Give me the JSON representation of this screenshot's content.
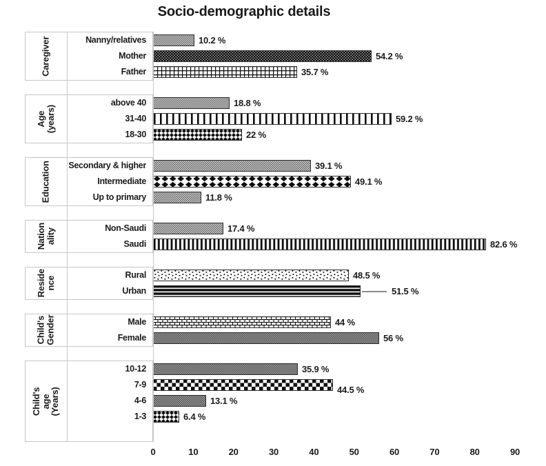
{
  "title": "Socio-demographic details",
  "palette": {
    "ink": "#1a1a1a",
    "bar_border": "#2a2a2a",
    "grid_line": "#c6c6c6",
    "pattern_black": "#0d0d0d",
    "pattern_gray": "#9d9d9d"
  },
  "chart_data": {
    "type": "bar",
    "orientation": "horizontal",
    "title": "Socio-demographic details",
    "xlabel": "",
    "ylabel": "",
    "unit": "%",
    "xlim": [
      0,
      90
    ],
    "x_ticks": [
      0,
      10,
      20,
      30,
      40,
      50,
      60,
      70,
      80,
      90
    ],
    "grid": false,
    "legend": false,
    "groups": [
      {
        "label_lines": [
          "Caregiver"
        ],
        "items": [
          {
            "category": "Nanny/relatives",
            "value": 10.2,
            "value_label": "10.2 %",
            "pattern": "gray-dither"
          },
          {
            "category": "Mother",
            "value": 54.2,
            "value_label": "54.2 %",
            "pattern": "dark-dots"
          },
          {
            "category": "Father",
            "value": 35.7,
            "value_label": "35.7 %",
            "pattern": "grid"
          }
        ]
      },
      {
        "label_lines": [
          "Age (years)"
        ],
        "items": [
          {
            "category": "above 40",
            "value": 18.8,
            "value_label": "18.8 %",
            "pattern": "gray-dither"
          },
          {
            "category": "31-40",
            "value": 59.2,
            "value_label": "59.2 %",
            "pattern": "vlines-wide"
          },
          {
            "category": "18-30",
            "value": 22,
            "value_label": "22 %",
            "pattern": "diamond-small"
          }
        ]
      },
      {
        "label_lines": [
          "Education"
        ],
        "items": [
          {
            "category": "Secondary & higher",
            "value": 39.1,
            "value_label": "39.1 %",
            "pattern": "gray-dither"
          },
          {
            "category": "Intermediate",
            "value": 49.1,
            "value_label": "49.1 %",
            "pattern": "diamond-big"
          },
          {
            "category": "Up to primary",
            "value": 11.8,
            "value_label": "11.8 %",
            "pattern": "gray-dither"
          }
        ]
      },
      {
        "label_lines": [
          "Nation",
          "ality"
        ],
        "items": [
          {
            "category": "Non-Saudi",
            "value": 17.4,
            "value_label": "17.4 %",
            "pattern": "gray-dither"
          },
          {
            "category": "Saudi",
            "value": 82.6,
            "value_label": "82.6 %",
            "pattern": "vlines-dense"
          }
        ]
      },
      {
        "label_lines": [
          "Reside",
          "nce"
        ],
        "items": [
          {
            "category": "Rural",
            "value": 48.5,
            "value_label": "48.5 %",
            "pattern": "speckle"
          },
          {
            "category": "Urban",
            "value": 51.5,
            "value_label": "51.5 %",
            "pattern": "hstripes-dark",
            "leader_line": true
          }
        ]
      },
      {
        "label_lines": [
          "Child's",
          "Gender"
        ],
        "items": [
          {
            "category": "Male",
            "value": 44,
            "value_label": "44 %",
            "pattern": "brick"
          },
          {
            "category": "Female",
            "value": 56,
            "value_label": "56 %",
            "pattern": "gray-dither-dark"
          }
        ]
      },
      {
        "label_lines": [
          "Child's age (Years)"
        ],
        "items": [
          {
            "category": "10-12",
            "value": 35.9,
            "value_label": "35.9 %",
            "pattern": "gray-dither-dark"
          },
          {
            "category": "7-9",
            "value": 44.5,
            "value_label": "44.5 %",
            "pattern": "checker",
            "label_low": true
          },
          {
            "category": "4-6",
            "value": 13.1,
            "value_label": "13.1 %",
            "pattern": "gray-dither-dark"
          },
          {
            "category": "1-3",
            "value": 6.4,
            "value_label": "6.4 %",
            "pattern": "diamond-small"
          }
        ]
      }
    ]
  }
}
